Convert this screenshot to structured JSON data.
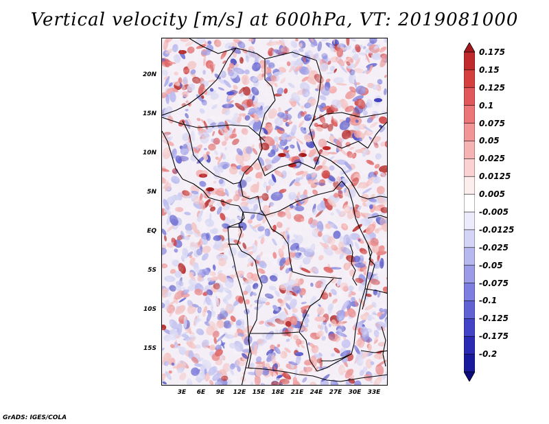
{
  "title": "Vertical velocity [m/s] at 600hPa, VT: 2019081000",
  "map": {
    "region": "Central Africa",
    "lat_labels": [
      "20N",
      "15N",
      "10N",
      "5N",
      "EQ",
      "5S",
      "10S",
      "15S"
    ],
    "lon_labels": [
      "3E",
      "6E",
      "9E",
      "12E",
      "15E",
      "18E",
      "21E",
      "24E",
      "27E",
      "30E",
      "33E"
    ]
  },
  "colorbar": {
    "labels": [
      "0.175",
      "0.15",
      "0.125",
      "0.1",
      "0.075",
      "0.05",
      "0.025",
      "0.0125",
      "0.005",
      "-0.005",
      "-0.0125",
      "-0.025",
      "-0.05",
      "-0.075",
      "-0.1",
      "-0.125",
      "-0.175",
      "-0.2"
    ],
    "colors": [
      "#a5181d",
      "#c12a2c",
      "#d5403e",
      "#e2575a",
      "#ec7677",
      "#f29596",
      "#f6b3b4",
      "#fad2d2",
      "#fdeeee",
      "#ffffff",
      "#ebebfb",
      "#d4d4f6",
      "#b8b8f0",
      "#9b9be8",
      "#7e7ee0",
      "#6161d6",
      "#4343c8",
      "#2a2ab4",
      "#1a1a9c",
      "#0c0c80"
    ]
  },
  "footer": "GrADS: IGES/COLA"
}
